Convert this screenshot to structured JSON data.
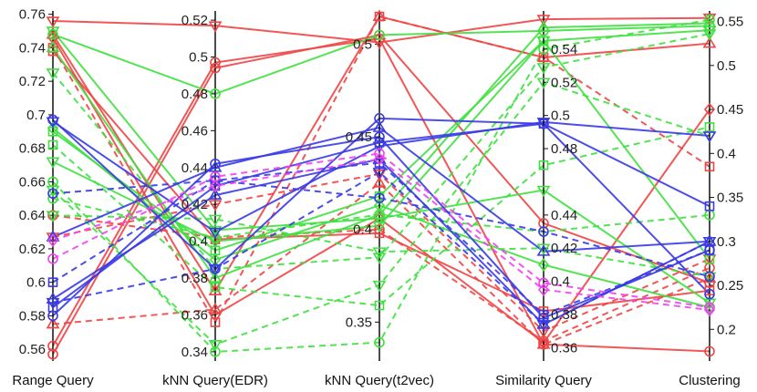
{
  "chart_data": {
    "type": "line",
    "subtype": "parallel-coordinates",
    "title": "",
    "categories": [
      "Range Query",
      "kNN Query(EDR)",
      "kNN Query(t2vec)",
      "Similarity Query",
      "Clustering"
    ],
    "axes": [
      {
        "name": "Range Query",
        "range": [
          0.553,
          0.762
        ],
        "ticks": [
          0.56,
          0.58,
          0.6,
          0.62,
          0.64,
          0.66,
          0.68,
          0.7,
          0.72,
          0.74,
          0.76
        ],
        "tick_side": "left"
      },
      {
        "name": "kNN Query(EDR)",
        "range": [
          0.335,
          0.525
        ],
        "ticks": [
          0.34,
          0.36,
          0.38,
          0.4,
          0.42,
          0.44,
          0.46,
          0.48,
          0.5,
          0.52
        ],
        "tick_side": "left"
      },
      {
        "name": "kNN Query(t2vec)",
        "range": [
          0.329,
          0.518
        ],
        "ticks": [
          0.35,
          0.4,
          0.45,
          0.5
        ],
        "tick_side": "left"
      },
      {
        "name": "Similarity Query",
        "range": [
          0.352,
          0.563
        ],
        "ticks": [
          0.36,
          0.38,
          0.4,
          0.42,
          0.44,
          0.48,
          0.5,
          0.52,
          0.54
        ],
        "tick_side": "right"
      },
      {
        "name": "Clustering",
        "range": [
          0.164,
          0.562
        ],
        "ticks": [
          0.2,
          0.25,
          0.3,
          0.35,
          0.4,
          0.45,
          0.5,
          0.55
        ],
        "tick_side": "right"
      }
    ],
    "colors": {
      "red": "#f04545",
      "green": "#40e040",
      "blue": "#3a3ae6",
      "magenta": "#ee44ee"
    },
    "series": [
      {
        "color": "red",
        "dash": "solid",
        "marker": "tri-down",
        "values": [
          0.756,
          0.517,
          0.501,
          0.558,
          0.554
        ]
      },
      {
        "color": "red",
        "dash": "solid",
        "marker": "tri-up",
        "values": [
          0.748,
          0.373,
          0.515,
          0.535,
          0.525
        ]
      },
      {
        "color": "red",
        "dash": "solid",
        "marker": "square",
        "values": [
          0.738,
          0.401,
          0.398,
          0.382,
          0.244
        ]
      },
      {
        "color": "red",
        "dash": "solid",
        "marker": "circle",
        "values": [
          0.562,
          0.497,
          0.503,
          0.362,
          0.175
        ]
      },
      {
        "color": "red",
        "dash": "solid",
        "marker": "circle",
        "values": [
          0.557,
          0.494,
          0.505,
          0.435,
          0.253
        ]
      },
      {
        "color": "red",
        "dash": "solid",
        "marker": "diamond",
        "values": [
          0.746,
          0.36,
          0.406,
          0.363,
          0.45
        ]
      },
      {
        "color": "red",
        "dash": "dashed",
        "marker": "square",
        "values": [
          0.74,
          0.356,
          0.515,
          0.535,
          0.385
        ]
      },
      {
        "color": "red",
        "dash": "dashed",
        "marker": "tri-up",
        "values": [
          0.575,
          0.363,
          0.425,
          0.362,
          0.258
        ]
      },
      {
        "color": "red",
        "dash": "dashed",
        "marker": "circle",
        "values": [
          0.64,
          0.402,
          0.4,
          0.364,
          0.27
        ]
      },
      {
        "color": "red",
        "dash": "dashed",
        "marker": "tri-down",
        "values": [
          0.627,
          0.42,
          0.43,
          0.37,
          0.28
        ]
      },
      {
        "color": "green",
        "dash": "solid",
        "marker": "circle",
        "values": [
          0.748,
          0.48,
          0.505,
          0.551,
          0.545
        ]
      },
      {
        "color": "green",
        "dash": "solid",
        "marker": "tri-up",
        "values": [
          0.74,
          0.38,
          0.408,
          0.553,
          0.548
        ]
      },
      {
        "color": "green",
        "dash": "solid",
        "marker": "tri-down",
        "values": [
          0.672,
          0.4,
          0.402,
          0.545,
          0.54
        ]
      },
      {
        "color": "green",
        "dash": "solid",
        "marker": "square",
        "values": [
          0.69,
          0.395,
          0.418,
          0.545,
          0.28
        ]
      },
      {
        "color": "green",
        "dash": "solid",
        "marker": "tri-down",
        "values": [
          0.75,
          0.406,
          0.406,
          0.455,
          0.23
        ]
      },
      {
        "color": "green",
        "dash": "solid",
        "marker": "diamond",
        "values": [
          0.692,
          0.39,
          0.413,
          0.41,
          0.225
        ]
      },
      {
        "color": "green",
        "dash": "dashed",
        "marker": "tri-down",
        "values": [
          0.725,
          0.385,
          0.385,
          0.529,
          0.536
        ]
      },
      {
        "color": "green",
        "dash": "dashed",
        "marker": "circle",
        "values": [
          0.66,
          0.34,
          0.339,
          0.54,
          0.552
        ]
      },
      {
        "color": "green",
        "dash": "dashed",
        "marker": "tri-down",
        "values": [
          0.655,
          0.344,
          0.37,
          0.52,
          0.42
        ]
      },
      {
        "color": "green",
        "dash": "dashed",
        "marker": "square",
        "values": [
          0.682,
          0.375,
          0.359,
          0.47,
          0.43
        ]
      },
      {
        "color": "green",
        "dash": "dashed",
        "marker": "circle",
        "values": [
          0.65,
          0.402,
          0.408,
          0.43,
          0.33
        ]
      },
      {
        "color": "green",
        "dash": "dashed",
        "marker": "tri-down",
        "values": [
          0.64,
          0.412,
          0.388,
          0.42,
          0.26
        ]
      },
      {
        "color": "blue",
        "dash": "solid",
        "marker": "circle",
        "values": [
          0.697,
          0.385,
          0.46,
          0.495,
          0.24
        ]
      },
      {
        "color": "blue",
        "dash": "solid",
        "marker": "tri-down",
        "values": [
          0.696,
          0.405,
          0.445,
          0.496,
          0.42
        ]
      },
      {
        "color": "blue",
        "dash": "solid",
        "marker": "tri-up",
        "values": [
          0.627,
          0.44,
          0.455,
          0.418,
          0.3
        ]
      },
      {
        "color": "blue",
        "dash": "solid",
        "marker": "square",
        "values": [
          0.585,
          0.43,
          0.447,
          0.495,
          0.34
        ]
      },
      {
        "color": "blue",
        "dash": "solid",
        "marker": "circle",
        "values": [
          0.58,
          0.442,
          0.45,
          0.378,
          0.29
        ]
      },
      {
        "color": "blue",
        "dash": "solid",
        "marker": "tri-up",
        "values": [
          0.59,
          0.425,
          0.438,
          0.374,
          0.3
        ]
      },
      {
        "color": "blue",
        "dash": "dashed",
        "marker": "circle",
        "values": [
          0.653,
          0.433,
          0.417,
          0.43,
          0.26
        ]
      },
      {
        "color": "blue",
        "dash": "dashed",
        "marker": "square",
        "values": [
          0.6,
          0.433,
          0.436,
          0.38,
          0.29
        ]
      },
      {
        "color": "blue",
        "dash": "dashed",
        "marker": "tri-down",
        "values": [
          0.588,
          0.385,
          0.431,
          0.374,
          0.3
        ]
      },
      {
        "color": "magenta",
        "dash": "dashed",
        "marker": "circle",
        "values": [
          0.614,
          0.435,
          0.441,
          0.399,
          0.225
        ]
      },
      {
        "color": "magenta",
        "dash": "dashed",
        "marker": "diamond",
        "values": [
          0.625,
          0.43,
          0.438,
          0.395,
          0.222
        ]
      }
    ]
  }
}
